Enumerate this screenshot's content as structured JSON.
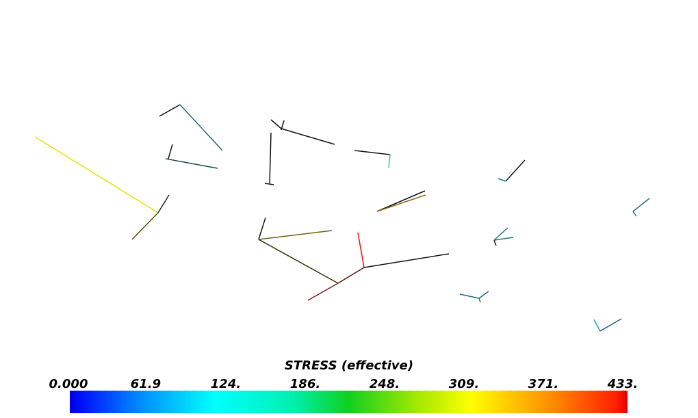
{
  "colorbar": {
    "title": "STRESS (effective)",
    "ticks": [
      "0.000",
      "61.9",
      "124.",
      "186.",
      "248.",
      "309.",
      "371.",
      "433."
    ]
  }
}
